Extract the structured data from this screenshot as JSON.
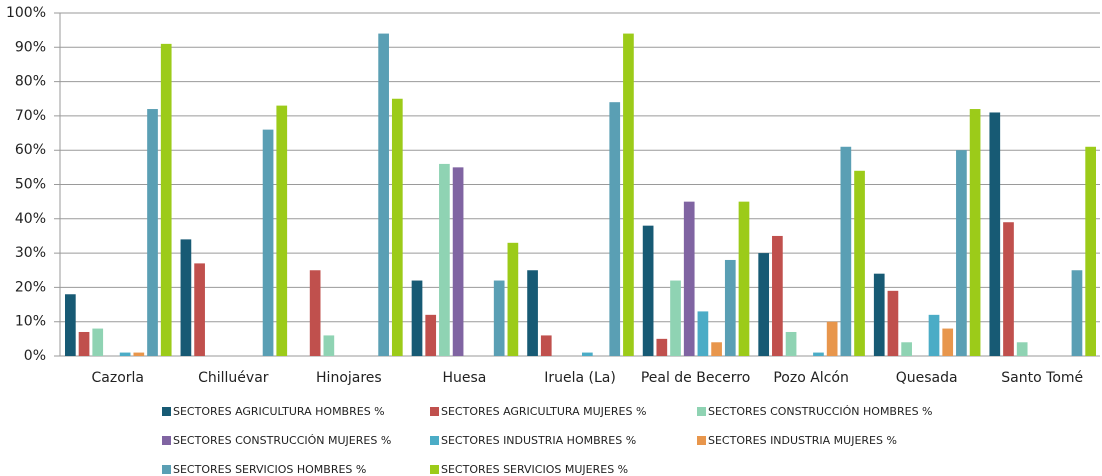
{
  "chart_data": {
    "type": "bar",
    "categories": [
      "Cazorla",
      "Chilluévar",
      "Hinojares",
      "Huesa",
      "Iruela (La)",
      "Peal de Becerro",
      "Pozo Alcón",
      "Quesada",
      "Santo Tomé"
    ],
    "series": [
      {
        "name": "SECTORES AGRICULTURA HOMBRES %",
        "color": "#175a74",
        "values": [
          18,
          34,
          0,
          22,
          25,
          38,
          30,
          24,
          71
        ]
      },
      {
        "name": "SECTORES AGRICULTURA MUJERES %",
        "color": "#c0504d",
        "values": [
          7,
          27,
          25,
          12,
          6,
          5,
          35,
          19,
          39
        ]
      },
      {
        "name": "SECTORES CONSTRUCCIÓN  HOMBRES %",
        "color": "#8fd3b3",
        "values": [
          8,
          0,
          6,
          56,
          0,
          22,
          7,
          4,
          4
        ]
      },
      {
        "name": "SECTORES CONSTRUCCIÓN  MUJERES %",
        "color": "#8064a2",
        "values": [
          0,
          0,
          0,
          55,
          0,
          45,
          0,
          0,
          0
        ]
      },
      {
        "name": "SECTORES INDUSTRIA  HOMBRES %",
        "color": "#4bacc6",
        "values": [
          1,
          0,
          0,
          0,
          1,
          13,
          1,
          12,
          0
        ]
      },
      {
        "name": "SECTORES INDUSTRIA  MUJERES %",
        "color": "#e8964c",
        "values": [
          1,
          0,
          0,
          0,
          0,
          4,
          10,
          8,
          0
        ]
      },
      {
        "name": "SECTORES SERVICIOS HOMBRES %",
        "color": "#5a9fb4",
        "values": [
          72,
          66,
          94,
          22,
          74,
          28,
          61,
          60,
          25
        ]
      },
      {
        "name": "SECTORES SERVICIOS MUJERES %",
        "color": "#9ccb19",
        "values": [
          91,
          73,
          75,
          33,
          94,
          45,
          54,
          72,
          61
        ]
      }
    ],
    "ylim": [
      0,
      100
    ],
    "yticks": [
      {
        "value": 0,
        "label": "0%"
      },
      {
        "value": 10,
        "label": "10%"
      },
      {
        "value": 20,
        "label": "20%"
      },
      {
        "value": 30,
        "label": "30%"
      },
      {
        "value": 40,
        "label": "40%"
      },
      {
        "value": 50,
        "label": "50%"
      },
      {
        "value": 60,
        "label": "60%"
      },
      {
        "value": 70,
        "label": "70%"
      },
      {
        "value": 80,
        "label": "80%"
      },
      {
        "value": 90,
        "label": "90%"
      },
      {
        "value": 100,
        "label": "100%"
      }
    ],
    "grid": true,
    "legend": "bottom"
  }
}
